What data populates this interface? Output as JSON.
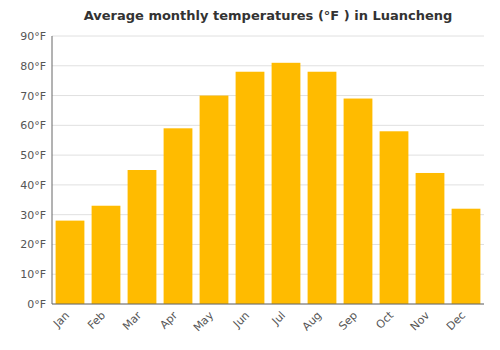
{
  "chart_data": {
    "type": "bar",
    "title": "Average monthly temperatures (°F ) in Luancheng",
    "categories": [
      "Jan",
      "Feb",
      "Mar",
      "Apr",
      "May",
      "Jun",
      "Jul",
      "Aug",
      "Sep",
      "Oct",
      "Nov",
      "Dec"
    ],
    "values": [
      28,
      33,
      45,
      59,
      70,
      78,
      81,
      78,
      69,
      58,
      44,
      32
    ],
    "color": "#FFBB00",
    "ylim": [
      0,
      90
    ],
    "yticks": [
      {
        "value": 0,
        "label": "0°F"
      },
      {
        "value": 10,
        "label": "10°F"
      },
      {
        "value": 20,
        "label": "20°F"
      },
      {
        "value": 30,
        "label": "30°F"
      },
      {
        "value": 40,
        "label": "40°F"
      },
      {
        "value": 50,
        "label": "50°F"
      },
      {
        "value": 60,
        "label": "60°F"
      },
      {
        "value": 70,
        "label": "70°F"
      },
      {
        "value": 80,
        "label": "80°F"
      },
      {
        "value": 90,
        "label": "90°F"
      }
    ],
    "grid": true
  }
}
